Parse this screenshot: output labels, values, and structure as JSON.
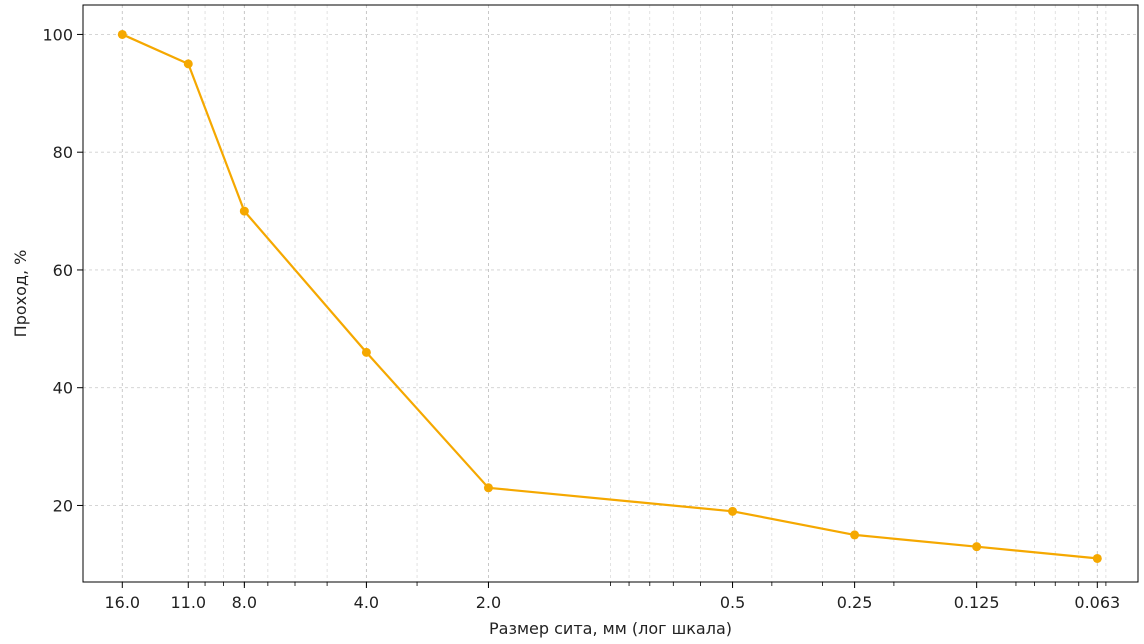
{
  "chart_data": {
    "type": "line",
    "title": "",
    "xlabel": "Размер сита, мм (лог шкала)",
    "ylabel": "Проход, %",
    "x_scale": "log",
    "x_direction": "descending",
    "x_ticks": [
      "16.0",
      "11.0",
      "8.0",
      "4.0",
      "2.0",
      "0.5",
      "0.25",
      "0.125",
      "0.063"
    ],
    "y_ticks": [
      "20",
      "40",
      "60",
      "80",
      "100"
    ],
    "ylim": [
      7,
      105
    ],
    "xlim": [
      20,
      0.05
    ],
    "grid": true,
    "series": [
      {
        "color": "#f5a800",
        "x": [
          16.0,
          11.0,
          8.0,
          4.0,
          2.0,
          0.5,
          0.25,
          0.125,
          0.063
        ],
        "y": [
          100,
          95,
          70,
          46,
          23,
          19,
          15,
          13,
          11
        ]
      }
    ]
  }
}
